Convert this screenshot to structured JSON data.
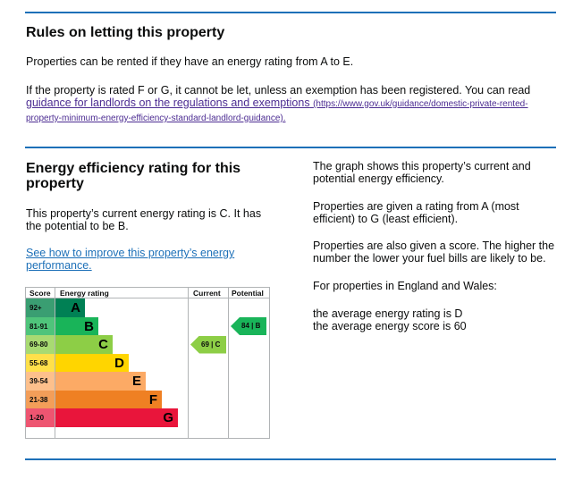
{
  "rules": {
    "title": "Rules on letting this property",
    "para1": "Properties can be rented if they have an energy rating from A to E.",
    "para2_text": "If the property is rated F or G, it cannot be let, unless an exemption has been registered. You can read",
    "link_text": "guidance for landlords on the regulations and exemptions",
    "link_url": "(https://www.gov.uk/guidance/domestic-private-rented-property-minimum-energy-efficiency-standard-landlord-guidance)."
  },
  "efficiency": {
    "title": "Energy efficiency rating for this property",
    "current_text": "This property’s current energy rating is C. It has the potential to be B.",
    "improve_link": "See how to improve this property’s energy performance."
  },
  "side": {
    "p1": "The graph shows this property’s current and potential energy efficiency.",
    "p2": "Properties are given a rating from A (most efficient) to G (least efficient).",
    "p3": "Properties are also given a score. The higher the number the lower your fuel bills are likely to be.",
    "p4": "For properties in England and Wales:",
    "p5": "the average energy rating is D",
    "p6": "the average energy score is 60"
  },
  "chart": {
    "headers": {
      "score": "Score",
      "rating": "Energy rating",
      "current": "Current",
      "potential": "Potential"
    },
    "bands": [
      {
        "score": "92+",
        "letter": "A",
        "color": "#008054",
        "score_color": "#3a9e72",
        "text_color": "#000000"
      },
      {
        "score": "81-91",
        "letter": "B",
        "color": "#19b459",
        "score_color": "#4fc47b",
        "text_color": "#000000"
      },
      {
        "score": "69-80",
        "letter": "C",
        "color": "#8dce46",
        "score_color": "#a8da72",
        "text_color": "#000000"
      },
      {
        "score": "55-68",
        "letter": "D",
        "color": "#ffd500",
        "score_color": "#ffe04a",
        "text_color": "#000000"
      },
      {
        "score": "39-54",
        "letter": "E",
        "color": "#fcaa65",
        "score_color": "#fdc08c",
        "text_color": "#000000"
      },
      {
        "score": "21-38",
        "letter": "F",
        "color": "#ef8023",
        "score_color": "#f39e59",
        "text_color": "#000000"
      },
      {
        "score": "1-20",
        "letter": "G",
        "color": "#e9153b",
        "score_color": "#ee5571",
        "text_color": "#000000"
      }
    ],
    "current": {
      "label": "69 | C",
      "band_index": 2,
      "color": "#8dce46"
    },
    "potential": {
      "label": "84 | B",
      "band_index": 1,
      "color": "#19b459"
    }
  }
}
